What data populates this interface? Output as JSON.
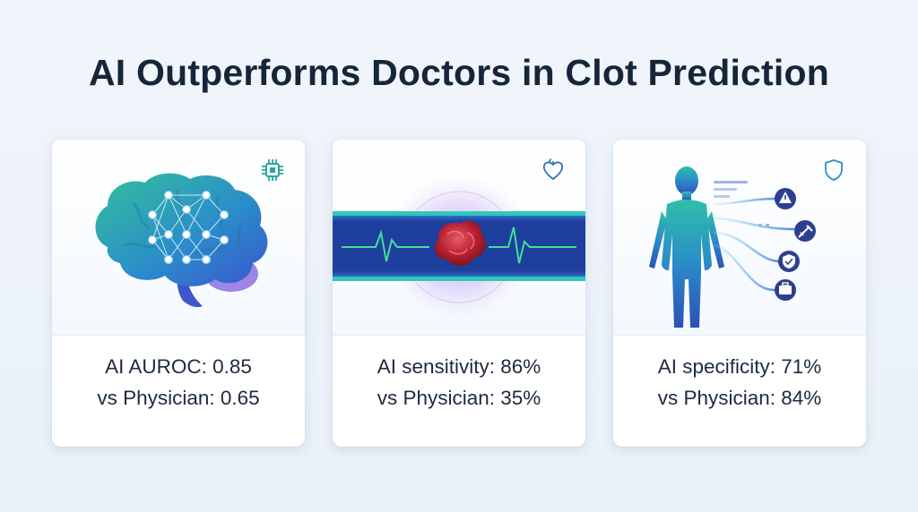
{
  "title": "AI Outperforms Doctors in Clot Prediction",
  "colors": {
    "accent_teal": "#2bb3a4",
    "accent_blue": "#2d5fd0",
    "accent_purple": "#7a5bd6",
    "clot_red": "#c0283a",
    "ekg_green": "#39d98a"
  },
  "cards": [
    {
      "icon": "chip-icon",
      "illustration": "brain-neural-network-icon",
      "line1": "AI AUROC: 0.85",
      "line2": "vs Physician: 0.65"
    },
    {
      "icon": "heart-icon",
      "illustration": "blood-vessel-clot-icon",
      "line1": "AI sensitivity: 86%",
      "line2": "vs Physician: 35%"
    },
    {
      "icon": "shield-icon",
      "illustration": "human-body-risk-icon",
      "line1": "AI specificity: 71%",
      "line2": "vs Physician: 84%"
    }
  ]
}
